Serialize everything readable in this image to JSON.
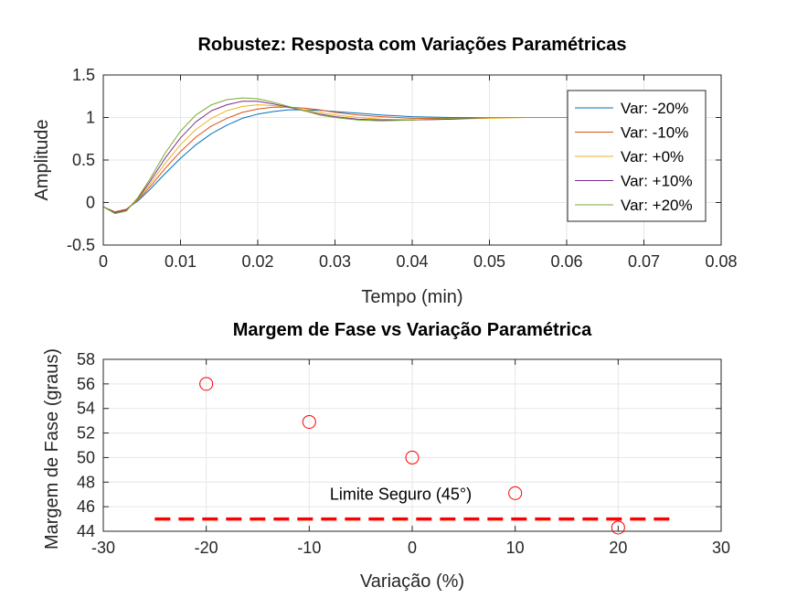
{
  "chart_data": [
    {
      "type": "line",
      "title": "Robustez: Resposta com Variações Paramétricas",
      "xlabel": "Tempo (min)",
      "ylabel": "Amplitude",
      "xlim": [
        0,
        0.08
      ],
      "ylim": [
        -0.5,
        1.5
      ],
      "xticks": [
        0,
        0.01,
        0.02,
        0.03,
        0.04,
        0.05,
        0.06,
        0.07,
        0.08
      ],
      "xtick_labels": [
        "0",
        "0.01",
        "0.02",
        "0.03",
        "0.04",
        "0.05",
        "0.06",
        "0.07",
        "0.08"
      ],
      "yticks": [
        -0.5,
        0,
        0.5,
        1,
        1.5
      ],
      "ytick_labels": [
        "-0.5",
        "0",
        "0.5",
        "1",
        "1.5"
      ],
      "grid": true,
      "legend": "top-right",
      "series": [
        {
          "name": "Var: -20%",
          "color": "#0072BD",
          "x": [
            0,
            0.0015,
            0.003,
            0.0045,
            0.006,
            0.008,
            0.01,
            0.012,
            0.014,
            0.016,
            0.018,
            0.02,
            0.022,
            0.024,
            0.026,
            0.028,
            0.03,
            0.033,
            0.036,
            0.04,
            0.045,
            0.05,
            0.055,
            0.06,
            0.065,
            0.07
          ],
          "y": [
            -0.05,
            -0.11,
            -0.08,
            0.02,
            0.15,
            0.34,
            0.52,
            0.68,
            0.81,
            0.91,
            0.99,
            1.04,
            1.07,
            1.09,
            1.09,
            1.085,
            1.07,
            1.05,
            1.03,
            1.01,
            1.0,
            1.0,
            1.0,
            1.0,
            1.0,
            1.0
          ]
        },
        {
          "name": "Var: -10%",
          "color": "#D95319",
          "x": [
            0,
            0.0015,
            0.003,
            0.0045,
            0.006,
            0.008,
            0.01,
            0.012,
            0.014,
            0.016,
            0.018,
            0.02,
            0.022,
            0.024,
            0.026,
            0.028,
            0.03,
            0.033,
            0.036,
            0.04,
            0.045,
            0.05,
            0.055,
            0.06,
            0.065,
            0.07
          ],
          "y": [
            -0.05,
            -0.11,
            -0.08,
            0.03,
            0.18,
            0.4,
            0.6,
            0.77,
            0.9,
            0.99,
            1.06,
            1.1,
            1.12,
            1.12,
            1.11,
            1.09,
            1.06,
            1.03,
            1.01,
            0.99,
            0.99,
            1.0,
            1.0,
            1.0,
            1.0,
            1.0
          ]
        },
        {
          "name": "Var: +0%",
          "color": "#EDB120",
          "x": [
            0,
            0.0015,
            0.003,
            0.0045,
            0.006,
            0.008,
            0.01,
            0.012,
            0.014,
            0.016,
            0.018,
            0.02,
            0.022,
            0.024,
            0.026,
            0.028,
            0.03,
            0.033,
            0.036,
            0.04,
            0.045,
            0.05,
            0.055,
            0.06,
            0.065,
            0.07
          ],
          "y": [
            -0.05,
            -0.12,
            -0.09,
            0.04,
            0.21,
            0.46,
            0.68,
            0.86,
            0.99,
            1.08,
            1.13,
            1.15,
            1.14,
            1.12,
            1.09,
            1.06,
            1.03,
            1.0,
            0.98,
            0.97,
            0.98,
            0.99,
            1.0,
            1.0,
            1.0,
            1.0
          ]
        },
        {
          "name": "Var: +10%",
          "color": "#7E2F8E",
          "x": [
            0,
            0.0015,
            0.003,
            0.0045,
            0.006,
            0.008,
            0.01,
            0.012,
            0.014,
            0.016,
            0.018,
            0.02,
            0.022,
            0.024,
            0.026,
            0.028,
            0.03,
            0.033,
            0.036,
            0.04,
            0.045,
            0.05,
            0.055,
            0.06,
            0.065,
            0.07
          ],
          "y": [
            -0.05,
            -0.12,
            -0.09,
            0.05,
            0.24,
            0.52,
            0.76,
            0.95,
            1.08,
            1.15,
            1.19,
            1.19,
            1.16,
            1.12,
            1.08,
            1.04,
            1.01,
            0.98,
            0.97,
            0.97,
            0.98,
            1.0,
            1.0,
            1.0,
            1.0,
            1.0
          ]
        },
        {
          "name": "Var: +20%",
          "color": "#77AC30",
          "x": [
            0,
            0.0015,
            0.003,
            0.0045,
            0.006,
            0.008,
            0.01,
            0.012,
            0.014,
            0.016,
            0.018,
            0.02,
            0.022,
            0.024,
            0.026,
            0.028,
            0.03,
            0.033,
            0.036,
            0.04,
            0.045,
            0.05,
            0.055,
            0.06,
            0.065,
            0.07
          ],
          "y": [
            -0.05,
            -0.13,
            -0.1,
            0.06,
            0.27,
            0.58,
            0.84,
            1.03,
            1.15,
            1.21,
            1.23,
            1.22,
            1.18,
            1.13,
            1.08,
            1.03,
            1.0,
            0.97,
            0.96,
            0.97,
            0.99,
            1.0,
            1.0,
            1.0,
            1.0,
            1.0
          ]
        }
      ]
    },
    {
      "type": "scatter",
      "title": "Margem de Fase vs Variação Paramétrica",
      "xlabel": "Variação (%)",
      "ylabel": "Margem de Fase (graus)",
      "xlim": [
        -30,
        30
      ],
      "ylim": [
        44,
        58
      ],
      "xticks": [
        -30,
        -20,
        -10,
        0,
        10,
        20,
        30
      ],
      "xtick_labels": [
        "-30",
        "-20",
        "-10",
        "0",
        "10",
        "20",
        "30"
      ],
      "yticks": [
        44,
        46,
        48,
        50,
        52,
        54,
        56,
        58
      ],
      "ytick_labels": [
        "44",
        "46",
        "48",
        "50",
        "52",
        "54",
        "56",
        "58"
      ],
      "grid": true,
      "marker_color": "#FF0000",
      "x": [
        -20,
        -10,
        0,
        10,
        20
      ],
      "y": [
        56.0,
        52.9,
        50.0,
        47.1,
        44.3
      ],
      "reference_line": {
        "x": [
          -25,
          25
        ],
        "y": 45,
        "color": "#FF0000",
        "style": "dashed"
      },
      "annotation": {
        "text": "Limite Seguro (45°)",
        "x": -8,
        "y": 47.1
      }
    }
  ]
}
